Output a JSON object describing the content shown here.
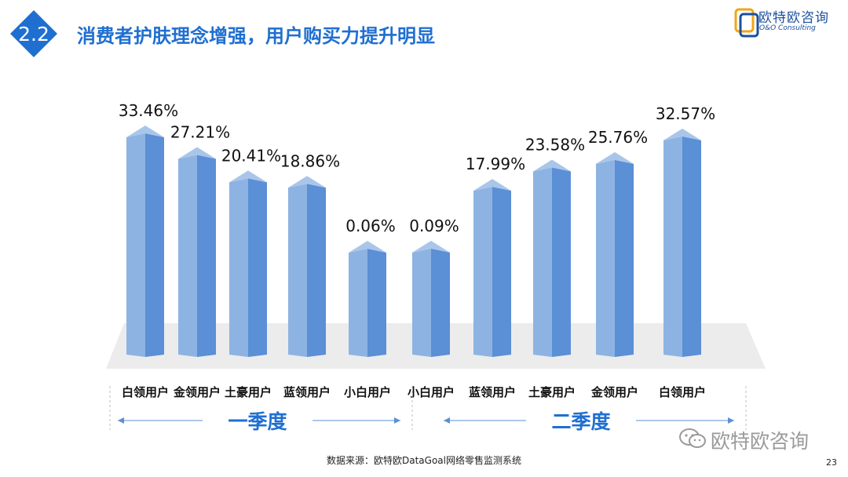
{
  "header": {
    "section_number": "2.2",
    "title": "消费者护肤理念增强，用户购买力提升明显"
  },
  "brand": {
    "name_cn": "欧特欧咨询",
    "name_en": "O&O Consulting",
    "color": "#1b4f9e"
  },
  "accent_color": "#1f6fd1",
  "footer": {
    "source": "数据来源：欧特欧DataGoal网络零售监测系统",
    "page_number": "23",
    "watermark": "欧特欧咨询"
  },
  "chart_data": {
    "type": "bar",
    "title": "",
    "xlabel": "",
    "ylabel": "",
    "grid": false,
    "legend": "none",
    "bar_color": "#8db3e2",
    "groups": [
      {
        "name": "一季度",
        "categories": [
          "白领用户",
          "金领用户",
          "土豪用户",
          "蓝领用户",
          "小白用户"
        ]
      },
      {
        "name": "二季度",
        "categories": [
          "小白用户",
          "蓝领用户",
          "土豪用户",
          "金领用户",
          "白领用户"
        ]
      }
    ],
    "categories": [
      "白领用户",
      "金领用户",
      "土豪用户",
      "蓝领用户",
      "小白用户",
      "小白用户",
      "蓝领用户",
      "土豪用户",
      "金领用户",
      "白领用户"
    ],
    "values": [
      33.46,
      27.21,
      20.41,
      18.86,
      0.06,
      0.09,
      17.99,
      23.58,
      25.76,
      32.57
    ],
    "labels": [
      "33.46%",
      "27.21%",
      "20.41%",
      "18.86%",
      "0.06%",
      "0.09%",
      "17.99%",
      "23.58%",
      "25.76%",
      "32.57%"
    ]
  }
}
